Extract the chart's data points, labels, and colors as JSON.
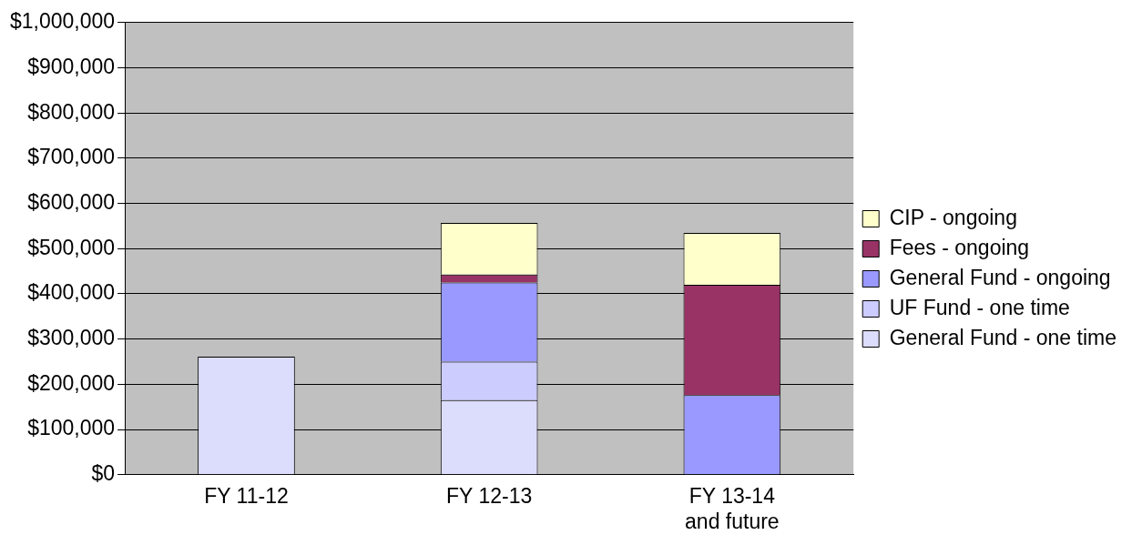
{
  "chart_data": {
    "type": "bar",
    "stacked": true,
    "categories": [
      "FY 11-12",
      "FY 12-13",
      "FY 13-14\nand future"
    ],
    "series": [
      {
        "name": "General Fund - one time",
        "color": "#dcdcfc",
        "values": [
          261000,
          165000,
          0
        ]
      },
      {
        "name": "UF Fund - one time",
        "color": "#ccccff",
        "values": [
          0,
          85000,
          0
        ]
      },
      {
        "name": "General Fund - ongoing",
        "color": "#9999ff",
        "values": [
          0,
          175000,
          176000
        ]
      },
      {
        "name": "Fees - ongoing",
        "color": "#993366",
        "values": [
          0,
          18000,
          244000
        ]
      },
      {
        "name": "CIP - ongoing",
        "color": "#ffffcc",
        "values": [
          0,
          114000,
          115000
        ]
      }
    ],
    "ylim": [
      0,
      1000000
    ],
    "yticks": [
      {
        "value": 0,
        "label": "$0"
      },
      {
        "value": 100000,
        "label": "$100,000"
      },
      {
        "value": 200000,
        "label": "$200,000"
      },
      {
        "value": 300000,
        "label": "$300,000"
      },
      {
        "value": 400000,
        "label": "$400,000"
      },
      {
        "value": 500000,
        "label": "$500,000"
      },
      {
        "value": 600000,
        "label": "$600,000"
      },
      {
        "value": 700000,
        "label": "$700,000"
      },
      {
        "value": 800000,
        "label": "$800,000"
      },
      {
        "value": 900000,
        "label": "$900,000"
      },
      {
        "value": 1000000,
        "label": "$1,000,000"
      }
    ],
    "grid": "y",
    "legend": "right"
  }
}
